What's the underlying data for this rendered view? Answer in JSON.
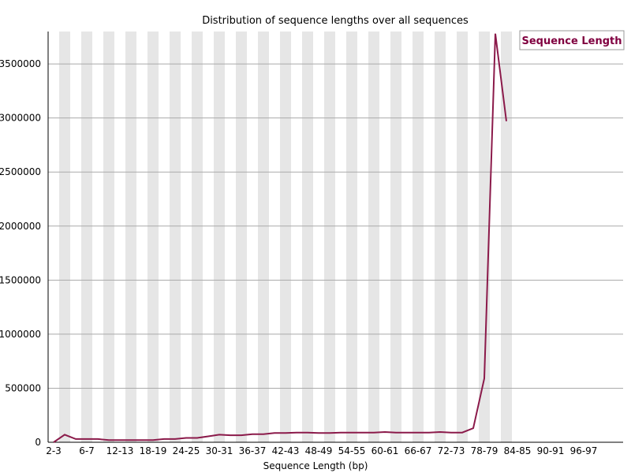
{
  "chart_data": {
    "type": "line",
    "title": "Distribution of sequence lengths over all sequences",
    "xlabel": "Sequence Length (bp)",
    "ylabel": "",
    "ylim": [
      0,
      3800000
    ],
    "yticks": [
      0,
      500000,
      1000000,
      1500000,
      2000000,
      2500000,
      3000000,
      3500000
    ],
    "ytick_labels": [
      "0",
      "500000",
      "1000000",
      "1500000",
      "2000000",
      "2500000",
      "3000000",
      "3500000"
    ],
    "xtick_labels": [
      "2-3",
      "6-7",
      "12-13",
      "18-19",
      "24-25",
      "30-31",
      "36-37",
      "42-43",
      "48-49",
      "54-55",
      "60-61",
      "66-67",
      "72-73",
      "78-79",
      "84-85",
      "90-91",
      "96-97"
    ],
    "legend_position": "top-right",
    "grid": true,
    "line_color": "#8b1a4a",
    "series": [
      {
        "name": "Sequence Length",
        "values": [
          0,
          70000,
          30000,
          30000,
          30000,
          20000,
          20000,
          20000,
          20000,
          20000,
          30000,
          30000,
          40000,
          40000,
          55000,
          70000,
          65000,
          65000,
          75000,
          75000,
          85000,
          85000,
          90000,
          90000,
          85000,
          85000,
          90000,
          90000,
          90000,
          90000,
          95000,
          90000,
          90000,
          90000,
          90000,
          95000,
          90000,
          90000,
          130000,
          590000,
          3780000,
          2970000
        ]
      }
    ]
  }
}
